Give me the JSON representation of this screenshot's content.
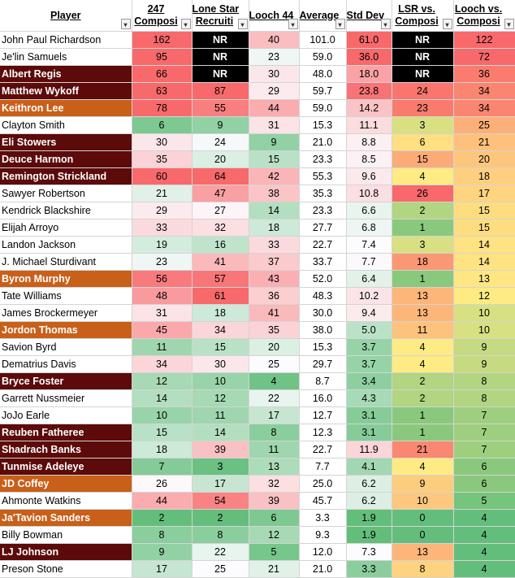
{
  "headers": [
    {
      "l1": "Player",
      "l2": ""
    },
    {
      "l1": "247",
      "l2": "Composi"
    },
    {
      "l1": "Lone Star",
      "l2": "Recruiti"
    },
    {
      "l1": "Looch 44",
      "l2": ""
    },
    {
      "l1": "Average",
      "l2": ""
    },
    {
      "l1": "Std Dev",
      "l2": ""
    },
    {
      "l1": "LSR vs.",
      "l2": "Composi"
    },
    {
      "l1": "Looch vs.",
      "l2": "Composi"
    }
  ],
  "filter_icon": "▾",
  "sorted_filter_icon": "▼",
  "colors": {
    "maroon": "#5c0a0a",
    "orange": "#c8601a",
    "nr": "#000000"
  },
  "rows": [
    {
      "player": "John Paul Richardson",
      "style": "",
      "c247": "162",
      "lsr": "NR",
      "looch": "40",
      "avg": "101.0",
      "std": "61.0",
      "lsrvs": "NR",
      "loochvs": "122"
    },
    {
      "player": "Je'lin Samuels",
      "style": "",
      "c247": "95",
      "lsr": "NR",
      "looch": "23",
      "avg": "59.0",
      "std": "36.0",
      "lsrvs": "NR",
      "loochvs": "72"
    },
    {
      "player": "Albert Regis",
      "style": "maroon",
      "c247": "66",
      "lsr": "NR",
      "looch": "30",
      "avg": "48.0",
      "std": "18.0",
      "lsrvs": "NR",
      "loochvs": "36"
    },
    {
      "player": "Matthew Wykoff",
      "style": "maroon",
      "c247": "63",
      "lsr": "87",
      "looch": "29",
      "avg": "59.7",
      "std": "23.8",
      "lsrvs": "24",
      "loochvs": "34"
    },
    {
      "player": "Keithron Lee",
      "style": "orange",
      "c247": "78",
      "lsr": "55",
      "looch": "44",
      "avg": "59.0",
      "std": "14.2",
      "lsrvs": "23",
      "loochvs": "34"
    },
    {
      "player": "Clayton Smith",
      "style": "",
      "c247": "6",
      "lsr": "9",
      "looch": "31",
      "avg": "15.3",
      "std": "11.1",
      "lsrvs": "3",
      "loochvs": "25"
    },
    {
      "player": "Eli Stowers",
      "style": "maroon",
      "c247": "30",
      "lsr": "24",
      "looch": "9",
      "avg": "21.0",
      "std": "8.8",
      "lsrvs": "6",
      "loochvs": "21"
    },
    {
      "player": "Deuce Harmon",
      "style": "maroon",
      "c247": "35",
      "lsr": "20",
      "looch": "15",
      "avg": "23.3",
      "std": "8.5",
      "lsrvs": "15",
      "loochvs": "20"
    },
    {
      "player": "Remington Strickland",
      "style": "maroon",
      "c247": "60",
      "lsr": "64",
      "looch": "42",
      "avg": "55.3",
      "std": "9.6",
      "lsrvs": "4",
      "loochvs": "18"
    },
    {
      "player": "Sawyer Robertson",
      "style": "",
      "c247": "21",
      "lsr": "47",
      "looch": "38",
      "avg": "35.3",
      "std": "10.8",
      "lsrvs": "26",
      "loochvs": "17"
    },
    {
      "player": "Kendrick Blackshire",
      "style": "",
      "c247": "29",
      "lsr": "27",
      "looch": "14",
      "avg": "23.3",
      "std": "6.6",
      "lsrvs": "2",
      "loochvs": "15"
    },
    {
      "player": "Elijah Arroyo",
      "style": "",
      "c247": "33",
      "lsr": "32",
      "looch": "18",
      "avg": "27.7",
      "std": "6.8",
      "lsrvs": "1",
      "loochvs": "15"
    },
    {
      "player": "Landon Jackson",
      "style": "",
      "c247": "19",
      "lsr": "16",
      "looch": "33",
      "avg": "22.7",
      "std": "7.4",
      "lsrvs": "3",
      "loochvs": "14"
    },
    {
      "player": "J. Michael Sturdivant",
      "style": "",
      "c247": "23",
      "lsr": "41",
      "looch": "37",
      "avg": "33.7",
      "std": "7.7",
      "lsrvs": "18",
      "loochvs": "14"
    },
    {
      "player": "Byron Murphy",
      "style": "orange",
      "c247": "56",
      "lsr": "57",
      "looch": "43",
      "avg": "52.0",
      "std": "6.4",
      "lsrvs": "1",
      "loochvs": "13"
    },
    {
      "player": "Tate Williams",
      "style": "",
      "c247": "48",
      "lsr": "61",
      "looch": "36",
      "avg": "48.3",
      "std": "10.2",
      "lsrvs": "13",
      "loochvs": "12"
    },
    {
      "player": "James Brockermeyer",
      "style": "",
      "c247": "31",
      "lsr": "18",
      "looch": "41",
      "avg": "30.0",
      "std": "9.4",
      "lsrvs": "13",
      "loochvs": "10"
    },
    {
      "player": "Jordon Thomas",
      "style": "orange",
      "c247": "45",
      "lsr": "34",
      "looch": "35",
      "avg": "38.0",
      "std": "5.0",
      "lsrvs": "11",
      "loochvs": "10"
    },
    {
      "player": "Savion Byrd",
      "style": "",
      "c247": "11",
      "lsr": "15",
      "looch": "20",
      "avg": "15.3",
      "std": "3.7",
      "lsrvs": "4",
      "loochvs": "9"
    },
    {
      "player": "Dematrius Davis",
      "style": "",
      "c247": "34",
      "lsr": "30",
      "looch": "25",
      "avg": "29.7",
      "std": "3.7",
      "lsrvs": "4",
      "loochvs": "9"
    },
    {
      "player": "Bryce Foster",
      "style": "maroon",
      "c247": "12",
      "lsr": "10",
      "looch": "4",
      "avg": "8.7",
      "std": "3.4",
      "lsrvs": "2",
      "loochvs": "8"
    },
    {
      "player": "Garrett Nussmeier",
      "style": "",
      "c247": "14",
      "lsr": "12",
      "looch": "22",
      "avg": "16.0",
      "std": "4.3",
      "lsrvs": "2",
      "loochvs": "8"
    },
    {
      "player": "JoJo Earle",
      "style": "",
      "c247": "10",
      "lsr": "11",
      "looch": "17",
      "avg": "12.7",
      "std": "3.1",
      "lsrvs": "1",
      "loochvs": "7"
    },
    {
      "player": "Reuben Fatheree",
      "style": "maroon",
      "c247": "15",
      "lsr": "14",
      "looch": "8",
      "avg": "12.3",
      "std": "3.1",
      "lsrvs": "1",
      "loochvs": "7"
    },
    {
      "player": "Shadrach Banks",
      "style": "maroon",
      "c247": "18",
      "lsr": "39",
      "looch": "11",
      "avg": "22.7",
      "std": "11.9",
      "lsrvs": "21",
      "loochvs": "7"
    },
    {
      "player": "Tunmise Adeleye",
      "style": "maroon",
      "c247": "7",
      "lsr": "3",
      "looch": "13",
      "avg": "7.7",
      "std": "4.1",
      "lsrvs": "4",
      "loochvs": "6"
    },
    {
      "player": "JD Coffey",
      "style": "orange",
      "c247": "26",
      "lsr": "17",
      "looch": "32",
      "avg": "25.0",
      "std": "6.2",
      "lsrvs": "9",
      "loochvs": "6"
    },
    {
      "player": "Ahmonte Watkins",
      "style": "",
      "c247": "44",
      "lsr": "54",
      "looch": "39",
      "avg": "45.7",
      "std": "6.2",
      "lsrvs": "10",
      "loochvs": "5"
    },
    {
      "player": "Ja'Tavion Sanders",
      "style": "orange",
      "c247": "2",
      "lsr": "2",
      "looch": "6",
      "avg": "3.3",
      "std": "1.9",
      "lsrvs": "0",
      "loochvs": "4"
    },
    {
      "player": "Billy Bowman",
      "style": "",
      "c247": "8",
      "lsr": "8",
      "looch": "12",
      "avg": "9.3",
      "std": "1.9",
      "lsrvs": "0",
      "loochvs": "4"
    },
    {
      "player": "LJ Johnson",
      "style": "maroon",
      "c247": "9",
      "lsr": "22",
      "looch": "5",
      "avg": "12.0",
      "std": "7.3",
      "lsrvs": "13",
      "loochvs": "4"
    },
    {
      "player": "Preson Stone",
      "style": "",
      "c247": "17",
      "lsr": "25",
      "looch": "21",
      "avg": "21.0",
      "std": "3.3",
      "lsrvs": "8",
      "loochvs": "4"
    }
  ]
}
